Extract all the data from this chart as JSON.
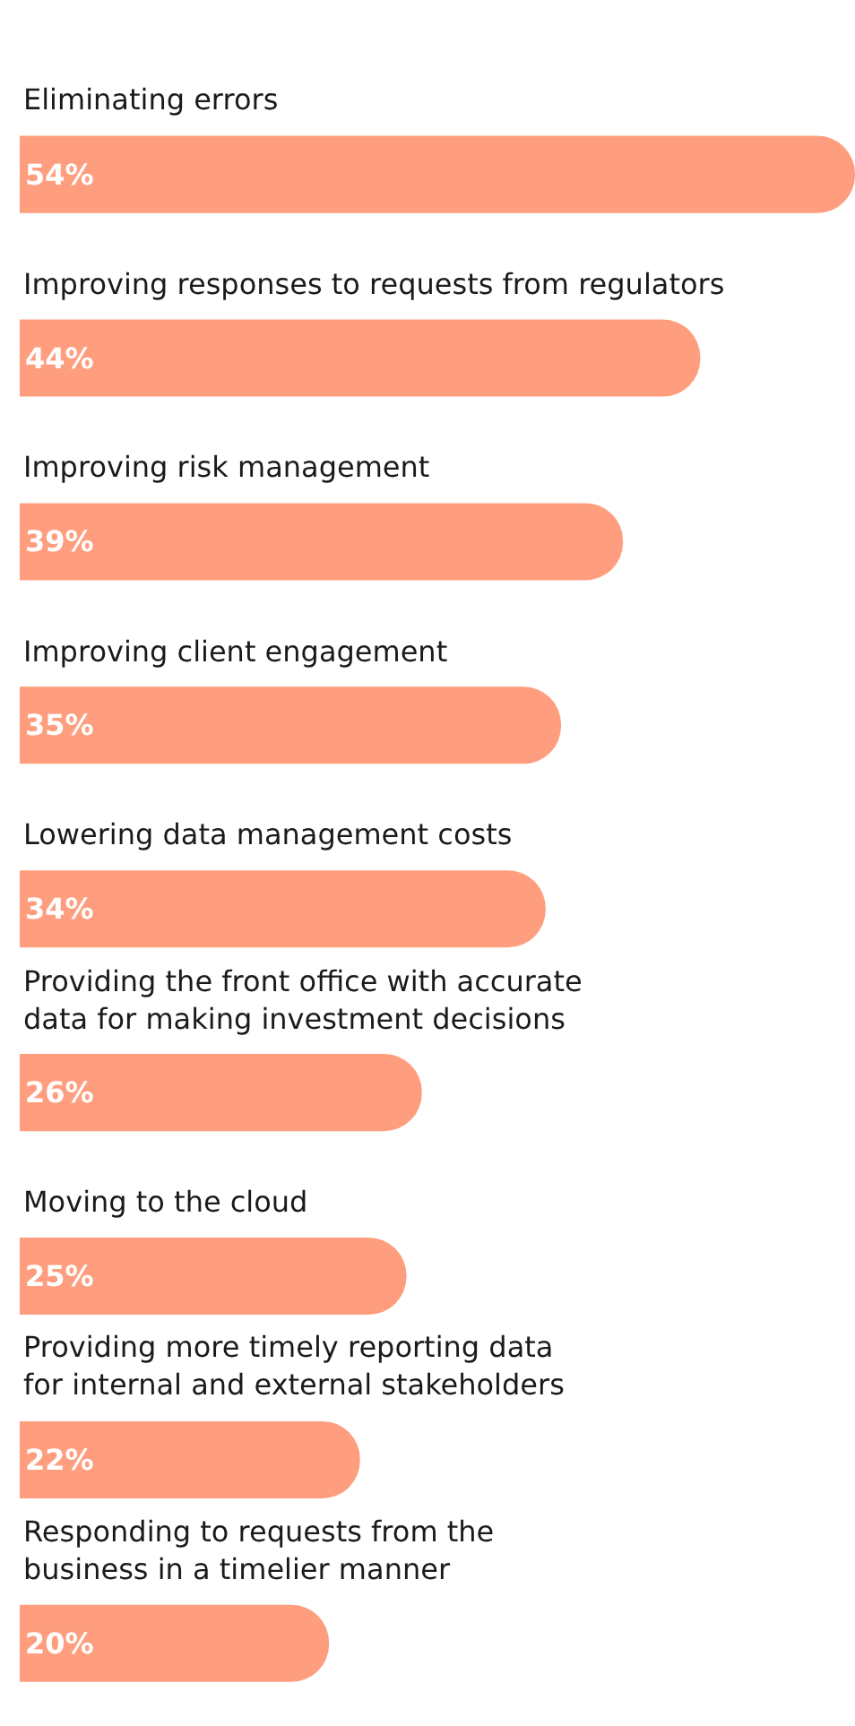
{
  "chart_data": {
    "type": "bar",
    "orientation": "horizontal",
    "categories": [
      "Eliminating errors",
      "Improving responses to requests from regulators",
      "Improving risk management",
      "Improving client engagement",
      "Lowering data management costs",
      "Providing the front office with accurate\ndata for making investment decisions",
      "Moving to the cloud",
      "Providing more timely reporting data\nfor internal and external stakeholders",
      "Responding to requests from the\nbusiness in a timelier manner"
    ],
    "values": [
      54,
      44,
      39,
      35,
      34,
      26,
      25,
      22,
      20
    ],
    "value_labels": [
      "54%",
      "44%",
      "39%",
      "35%",
      "34%",
      "26%",
      "25%",
      "22%",
      "20%"
    ],
    "color": "#ff9e7e"
  }
}
